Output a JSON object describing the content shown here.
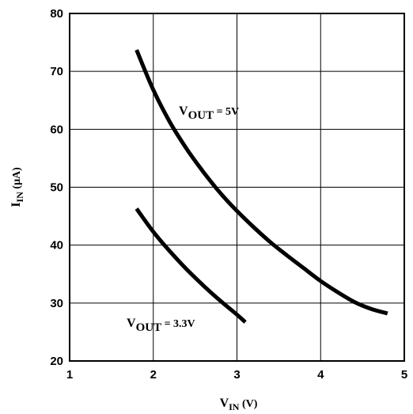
{
  "chart_data": {
    "type": "line",
    "xlabel": {
      "main": "V",
      "sub": "IN",
      "unit": " (V)"
    },
    "ylabel": {
      "main": "I",
      "sub": "IN",
      "unit": " (µA)"
    },
    "xlim": [
      1,
      5
    ],
    "ylim": [
      20,
      80
    ],
    "xticks": [
      1,
      2,
      3,
      4,
      5
    ],
    "yticks": [
      20,
      30,
      40,
      50,
      60,
      70,
      80
    ],
    "grid": true,
    "series": [
      {
        "name": "VOUT = 5V",
        "label": {
          "main": "V",
          "sub": "OUT",
          "rest": " = 5V"
        },
        "x": [
          1.8,
          2.0,
          2.2,
          2.4,
          2.6,
          2.8,
          3.0,
          3.2,
          3.4,
          3.6,
          3.8,
          4.0,
          4.2,
          4.4,
          4.6,
          4.8
        ],
        "y": [
          73.7,
          66.8,
          61.2,
          56.6,
          52.6,
          49.0,
          45.9,
          43.1,
          40.5,
          38.2,
          36.0,
          33.8,
          31.9,
          30.2,
          29.0,
          28.2
        ]
      },
      {
        "name": "VOUT = 3.3V",
        "label": {
          "main": "V",
          "sub": "OUT",
          "rest": " = 3.3V"
        },
        "x": [
          1.8,
          2.0,
          2.2,
          2.4,
          2.6,
          2.8,
          3.0,
          3.1
        ],
        "y": [
          46.3,
          42.3,
          38.9,
          35.8,
          33.0,
          30.4,
          28.0,
          26.7
        ]
      }
    ]
  }
}
